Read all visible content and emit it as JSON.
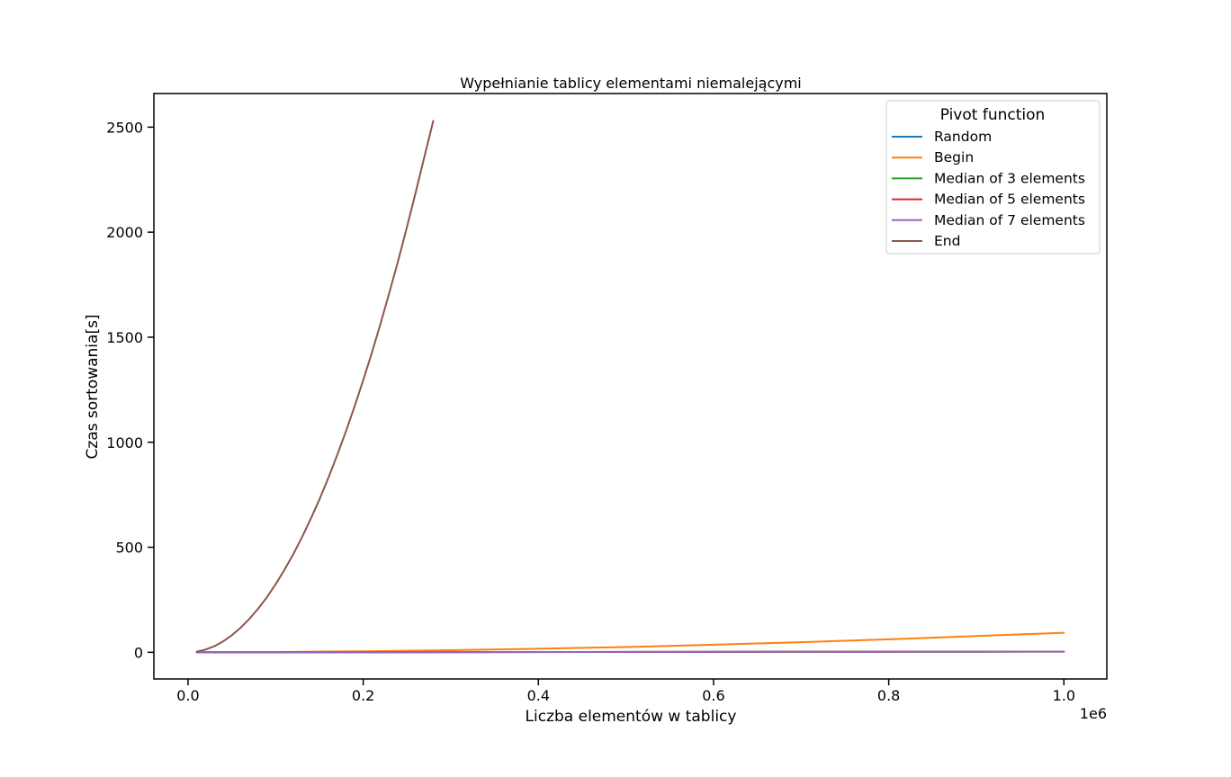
{
  "chart_data": {
    "type": "line",
    "title": "Wypełnianie tablicy elementami niemalejącymi",
    "xlabel": "Liczba elementów w tablicy",
    "ylabel": "Czas sortowania[s]",
    "x_offset_label": "1e6",
    "xlim": [
      -0.039,
      1.049
    ],
    "ylim": [
      -127,
      2660
    ],
    "x_ticks": [
      {
        "value": 0.0,
        "label": "0.0"
      },
      {
        "value": 0.2,
        "label": "0.2"
      },
      {
        "value": 0.4,
        "label": "0.4"
      },
      {
        "value": 0.6,
        "label": "0.6"
      },
      {
        "value": 0.8,
        "label": "0.8"
      },
      {
        "value": 1.0,
        "label": "1.0"
      }
    ],
    "y_ticks": [
      {
        "value": 0,
        "label": "0"
      },
      {
        "value": 500,
        "label": "500"
      },
      {
        "value": 1000,
        "label": "1000"
      },
      {
        "value": 1500,
        "label": "1500"
      },
      {
        "value": 2000,
        "label": "2000"
      },
      {
        "value": 2500,
        "label": "2500"
      }
    ],
    "grid": false,
    "legend": {
      "title": "Pivot function",
      "position": "top-right"
    },
    "series": [
      {
        "name": "Random",
        "color": "#1f77b4",
        "x": [
          0.01,
          0.1,
          0.2,
          0.3,
          0.4,
          0.5,
          0.6,
          0.7,
          0.8,
          0.9,
          1.0
        ],
        "y": [
          0,
          0.3,
          0.6,
          1.0,
          1.3,
          1.7,
          2.0,
          2.4,
          2.8,
          3.1,
          3.5
        ]
      },
      {
        "name": "Begin",
        "color": "#ff7f0e",
        "x": [
          0.01,
          0.1,
          0.2,
          0.3,
          0.4,
          0.5,
          0.6,
          0.7,
          0.8,
          0.9,
          1.0
        ],
        "y": [
          0,
          1.5,
          5,
          10,
          17,
          25,
          36,
          48,
          62,
          77,
          93
        ]
      },
      {
        "name": "Median of 3 elements",
        "color": "#2ca02c",
        "x": [
          0.01,
          0.1,
          0.2,
          0.3,
          0.4,
          0.5,
          0.6,
          0.7,
          0.8,
          0.9,
          1.0
        ],
        "y": [
          0,
          0.3,
          0.6,
          0.9,
          1.2,
          1.6,
          1.9,
          2.2,
          2.6,
          2.9,
          3.2
        ]
      },
      {
        "name": "Median of 5 elements",
        "color": "#d62728",
        "x": [
          0.01,
          0.1,
          0.2,
          0.3,
          0.4,
          0.5,
          0.6,
          0.7,
          0.8,
          0.9,
          1.0
        ],
        "y": [
          0,
          0.3,
          0.6,
          0.9,
          1.3,
          1.6,
          1.9,
          2.3,
          2.6,
          3.0,
          3.3
        ]
      },
      {
        "name": "Median of 7 elements",
        "color": "#9467bd",
        "x": [
          0.01,
          0.1,
          0.2,
          0.3,
          0.4,
          0.5,
          0.6,
          0.7,
          0.8,
          0.9,
          1.0
        ],
        "y": [
          0,
          0.3,
          0.7,
          1.0,
          1.4,
          1.7,
          2.1,
          2.4,
          2.8,
          3.1,
          3.5
        ]
      },
      {
        "name": "End",
        "color": "#8c564b",
        "x": [
          0.01,
          0.02,
          0.03,
          0.04,
          0.05,
          0.06,
          0.07,
          0.08,
          0.09,
          0.1,
          0.11,
          0.12,
          0.13,
          0.14,
          0.15,
          0.16,
          0.17,
          0.18,
          0.19,
          0.2,
          0.21,
          0.22,
          0.23,
          0.24,
          0.25,
          0.26,
          0.27,
          0.28
        ],
        "y": [
          3,
          13,
          29,
          52,
          81,
          117,
          159,
          207,
          262,
          324,
          392,
          466,
          547,
          634,
          728,
          828,
          935,
          1049,
          1169,
          1295,
          1428,
          1568,
          1714,
          1866,
          2025,
          2190,
          2362,
          2530
        ]
      }
    ]
  }
}
